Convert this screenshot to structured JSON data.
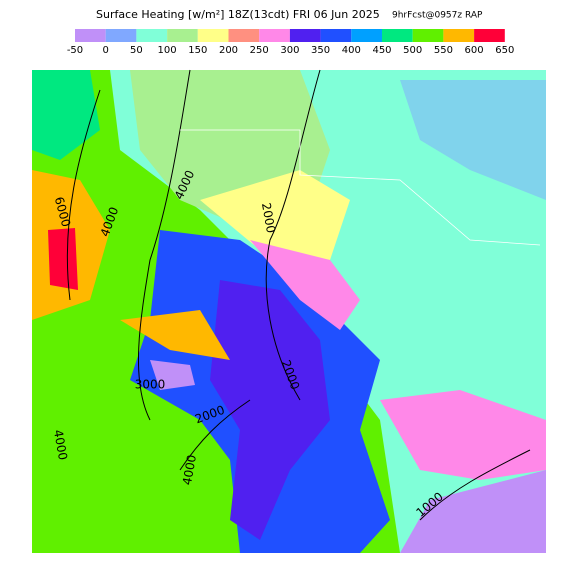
{
  "header": {
    "title": "Surface Heating [w/m²] 18Z(13cdt) FRI 06 Jun 2025",
    "subtitle": "9hrFcst@0957z RAP"
  },
  "legend": {
    "labels": [
      -50,
      0,
      50,
      100,
      150,
      200,
      250,
      300,
      350,
      400,
      450,
      500,
      550,
      600,
      650
    ],
    "colors": [
      "#c090f8",
      "#80a8ff",
      "#80ffd8",
      "#a8f090",
      "#ffff88",
      "#ff9080",
      "#ff88e8",
      "#5020f0",
      "#2050ff",
      "#00a0ff",
      "#00e880",
      "#60f000",
      "#ffb800",
      "#ff0038",
      "#ff00ff"
    ]
  },
  "contours": [
    {
      "label": "6000"
    },
    {
      "label": "4000"
    },
    {
      "label": "4000"
    },
    {
      "label": "2000"
    },
    {
      "label": "3000"
    },
    {
      "label": "2000"
    },
    {
      "label": "2000"
    },
    {
      "label": "4000"
    },
    {
      "label": "4000"
    },
    {
      "label": "1000"
    }
  ]
}
